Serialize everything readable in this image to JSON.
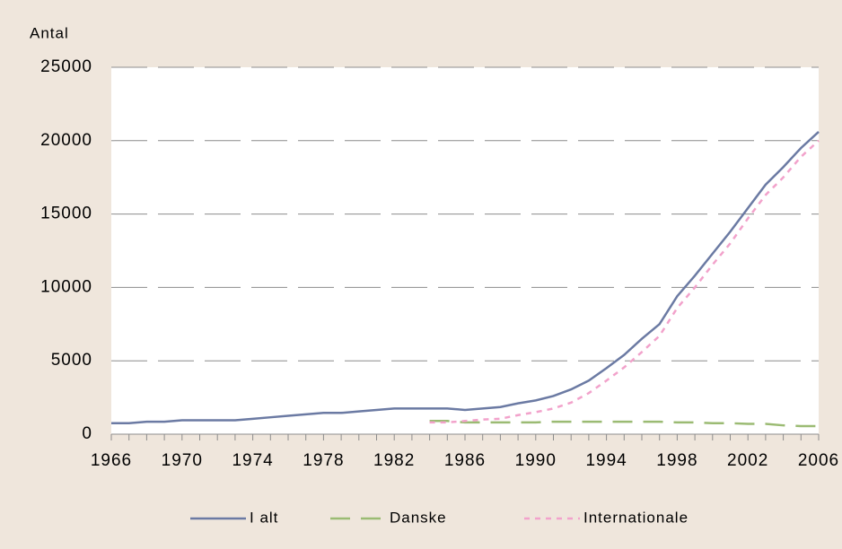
{
  "chart_data": {
    "type": "line",
    "y_label": "Antal",
    "x": [
      1966,
      1967,
      1968,
      1969,
      1970,
      1971,
      1972,
      1973,
      1974,
      1975,
      1976,
      1977,
      1978,
      1979,
      1980,
      1981,
      1982,
      1983,
      1984,
      1985,
      1986,
      1987,
      1988,
      1989,
      1990,
      1991,
      1992,
      1993,
      1994,
      1995,
      1996,
      1997,
      1998,
      1999,
      2000,
      2001,
      2002,
      2003,
      2004,
      2005,
      2006
    ],
    "xlim": [
      1966,
      2006
    ],
    "xticks": [
      1966,
      1970,
      1974,
      1978,
      1982,
      1986,
      1990,
      1994,
      1998,
      2002,
      2006
    ],
    "ylim": [
      0,
      25000
    ],
    "yticks": [
      0,
      5000,
      10000,
      15000,
      20000,
      25000
    ],
    "grid": true,
    "legend": "bottom",
    "series": [
      {
        "name": "I alt",
        "color": "#6b7aa3",
        "dash": "solid",
        "values": [
          750,
          750,
          850,
          850,
          950,
          950,
          950,
          950,
          1050,
          1150,
          1250,
          1350,
          1450,
          1450,
          1550,
          1650,
          1750,
          1750,
          1750,
          1750,
          1650,
          1750,
          1850,
          2100,
          2300,
          2600,
          3050,
          3650,
          4500,
          5400,
          6500,
          7500,
          9400,
          10800,
          12300,
          13800,
          15400,
          17000,
          18200,
          19500,
          20600
        ]
      },
      {
        "name": "Danske",
        "color": "#9bbb73",
        "dash": "dashed",
        "values": [
          null,
          null,
          null,
          null,
          null,
          null,
          null,
          null,
          null,
          null,
          null,
          null,
          null,
          null,
          null,
          null,
          null,
          null,
          900,
          900,
          800,
          800,
          800,
          800,
          800,
          850,
          850,
          850,
          850,
          850,
          850,
          850,
          800,
          800,
          750,
          750,
          700,
          700,
          600,
          550,
          550
        ]
      },
      {
        "name": "Internationale",
        "color": "#f2a2cb",
        "dash": "dotted",
        "values": [
          null,
          null,
          null,
          null,
          null,
          null,
          null,
          null,
          null,
          null,
          null,
          null,
          null,
          null,
          null,
          null,
          null,
          null,
          800,
          800,
          900,
          1000,
          1050,
          1300,
          1500,
          1750,
          2150,
          2800,
          3650,
          4550,
          5600,
          6700,
          8600,
          10000,
          11550,
          13000,
          14700,
          16300,
          17500,
          18900,
          20000
        ]
      }
    ]
  }
}
